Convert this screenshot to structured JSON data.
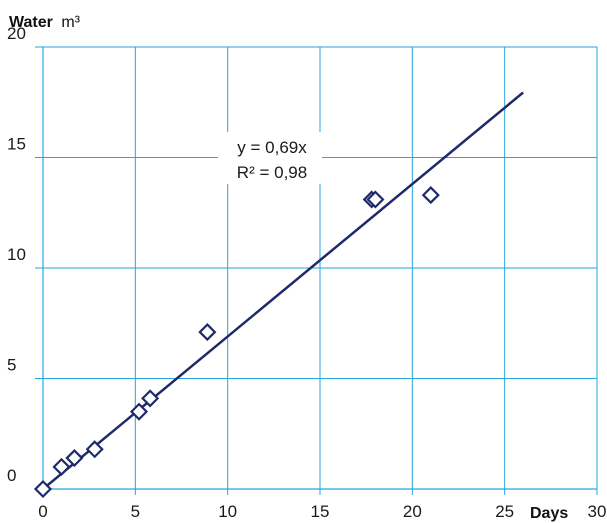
{
  "chart_data": {
    "type": "scatter",
    "y_axis_title_bold": "Water",
    "y_axis_title_unit": "m³",
    "x_axis_title_bold": "Days",
    "xlim": [
      0,
      30
    ],
    "ylim": [
      0,
      20
    ],
    "x_ticks": [
      0,
      5,
      10,
      15,
      20,
      25,
      30
    ],
    "y_ticks": [
      0,
      5,
      10,
      15,
      20
    ],
    "x_tick_labels": [
      "0",
      "5",
      "10",
      "15",
      "20",
      "25",
      "30"
    ],
    "y_tick_labels": [
      "0",
      "5",
      "10",
      "15",
      "20"
    ],
    "grid": true,
    "points": [
      {
        "x": 0.0,
        "y": 0.0
      },
      {
        "x": 1.0,
        "y": 1.0
      },
      {
        "x": 1.7,
        "y": 1.4
      },
      {
        "x": 2.8,
        "y": 1.8
      },
      {
        "x": 5.2,
        "y": 3.5
      },
      {
        "x": 5.8,
        "y": 4.1
      },
      {
        "x": 8.9,
        "y": 7.1
      },
      {
        "x": 17.8,
        "y": 13.1
      },
      {
        "x": 18.0,
        "y": 13.1
      },
      {
        "x": 21.0,
        "y": 13.3
      }
    ],
    "trendline": {
      "slope": 0.69,
      "intercept": 0,
      "x_start": 0,
      "x_end": 26,
      "equation": "y = 0,69x",
      "r_squared": "R² = 0,98"
    },
    "colors": {
      "grid": "#27a6dc",
      "series": "#1f2a6b",
      "marker_fill": "#ffffff"
    }
  }
}
